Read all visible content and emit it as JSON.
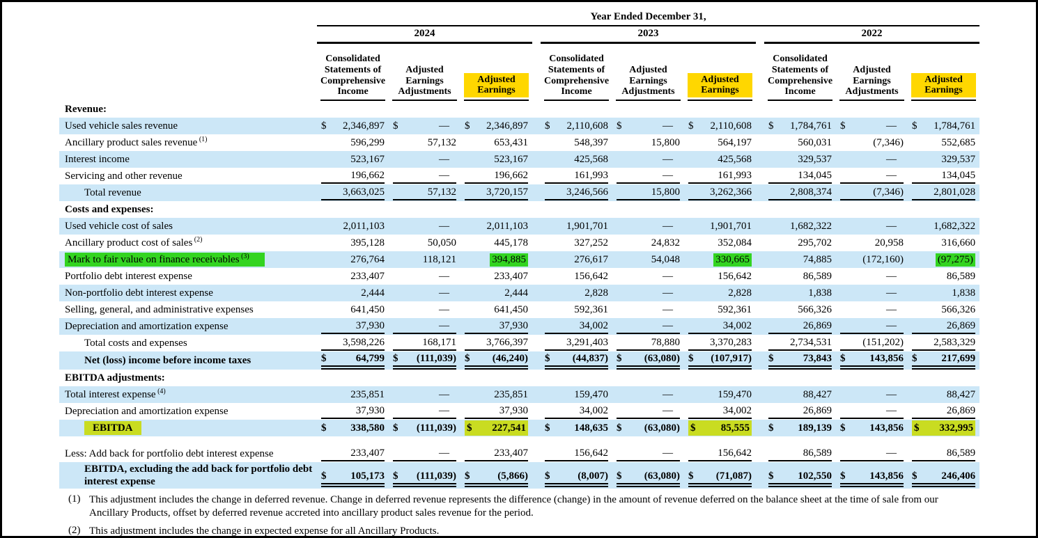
{
  "colors": {
    "stripe_blue": "#cce7f7",
    "highlight_gold": "#ffd700",
    "highlight_green": "#33d421",
    "highlight_chartreuse": "#c9dc21"
  },
  "header": {
    "title": "Year Ended December 31,",
    "years": [
      "2024",
      "2023",
      "2022"
    ],
    "columns": [
      "Consolidated Statements of Comprehensive Income",
      "Adjusted Earnings Adjustments",
      "Adjusted Earnings"
    ]
  },
  "table": {
    "rows": [
      {
        "kind": "section",
        "label": "Revenue:",
        "bg": "white"
      },
      {
        "label": "Used vehicle sales revenue",
        "bg": "blue",
        "dollar": true,
        "values": [
          "2,346,897",
          "—",
          "2,346,897",
          "2,110,608",
          "—",
          "2,110,608",
          "1,784,761",
          "—",
          "1,784,761"
        ]
      },
      {
        "label": "Ancillary product sales revenue",
        "sup": "(1)",
        "bg": "white",
        "values": [
          "596,299",
          "57,132",
          "653,431",
          "548,397",
          "15,800",
          "564,197",
          "560,031",
          "(7,346)",
          "552,685"
        ]
      },
      {
        "label": "Interest income",
        "bg": "blue",
        "values": [
          "523,167",
          "—",
          "523,167",
          "425,568",
          "—",
          "425,568",
          "329,537",
          "—",
          "329,537"
        ]
      },
      {
        "label": "Servicing and other revenue",
        "bg": "white",
        "border": "single",
        "values": [
          "196,662",
          "—",
          "196,662",
          "161,993",
          "—",
          "161,993",
          "134,045",
          "—",
          "134,045"
        ]
      },
      {
        "label": "Total revenue",
        "indent": true,
        "bg": "blue",
        "border": "single",
        "values": [
          "3,663,025",
          "57,132",
          "3,720,157",
          "3,246,566",
          "15,800",
          "3,262,366",
          "2,808,374",
          "(7,346)",
          "2,801,028"
        ]
      },
      {
        "kind": "section",
        "label": "Costs and expenses:",
        "bg": "white"
      },
      {
        "label": "Used vehicle cost of sales",
        "bg": "blue",
        "values": [
          "2,011,103",
          "—",
          "2,011,103",
          "1,901,701",
          "—",
          "1,901,701",
          "1,682,322",
          "—",
          "1,682,322"
        ]
      },
      {
        "label": "Ancillary product cost of sales",
        "sup": "(2)",
        "bg": "white",
        "values": [
          "395,128",
          "50,050",
          "445,178",
          "327,252",
          "24,832",
          "352,084",
          "295,702",
          "20,958",
          "316,660"
        ]
      },
      {
        "label": "Mark to fair value on finance receivables",
        "sup": "(3)",
        "bg": "blue",
        "labelHl": "green",
        "hl": {
          "2": "green",
          "5": "green",
          "8": "green"
        },
        "values": [
          "276,764",
          "118,121",
          "394,885",
          "276,617",
          "54,048",
          "330,665",
          "74,885",
          "(172,160)",
          "(97,275)"
        ]
      },
      {
        "label": "Portfolio debt interest expense",
        "bg": "white",
        "values": [
          "233,407",
          "—",
          "233,407",
          "156,642",
          "—",
          "156,642",
          "86,589",
          "—",
          "86,589"
        ]
      },
      {
        "label": "Non-portfolio debt interest expense",
        "bg": "blue",
        "values": [
          "2,444",
          "—",
          "2,444",
          "2,828",
          "—",
          "2,828",
          "1,838",
          "—",
          "1,838"
        ]
      },
      {
        "label": "Selling, general, and administrative expenses",
        "bg": "white",
        "values": [
          "641,450",
          "—",
          "641,450",
          "592,361",
          "—",
          "592,361",
          "566,326",
          "—",
          "566,326"
        ]
      },
      {
        "label": "Depreciation and amortization expense",
        "bg": "blue",
        "border": "single",
        "values": [
          "37,930",
          "—",
          "37,930",
          "34,002",
          "—",
          "34,002",
          "26,869",
          "—",
          "26,869"
        ]
      },
      {
        "label": "Total costs and expenses",
        "indent": true,
        "bg": "white",
        "border": "single",
        "values": [
          "3,598,226",
          "168,171",
          "3,766,397",
          "3,291,403",
          "78,880",
          "3,370,283",
          "2,734,531",
          "(151,202)",
          "2,583,329"
        ]
      },
      {
        "label": "Net (loss) income before income taxes",
        "indent": true,
        "bold": true,
        "bg": "blue",
        "dollar": true,
        "border": "double",
        "values": [
          "64,799",
          "(111,039)",
          "(46,240)",
          "(44,837)",
          "(63,080)",
          "(107,917)",
          "73,843",
          "143,856",
          "217,699"
        ]
      },
      {
        "kind": "section",
        "label": "EBITDA adjustments:",
        "bg": "white"
      },
      {
        "label": "Total interest expense",
        "sup": "(4)",
        "bg": "blue",
        "values": [
          "235,851",
          "—",
          "235,851",
          "159,470",
          "—",
          "159,470",
          "88,427",
          "—",
          "88,427"
        ]
      },
      {
        "label": "Depreciation and amortization expense",
        "bg": "white",
        "border": "single",
        "values": [
          "37,930",
          "—",
          "37,930",
          "34,002",
          "—",
          "34,002",
          "26,869",
          "—",
          "26,869"
        ]
      },
      {
        "label": "EBITDA",
        "indent": true,
        "bold": true,
        "bg": "blue",
        "dollar": true,
        "labelHl": "chartreuse",
        "hl": {
          "2": "chartreuse",
          "5": "chartreuse",
          "8": "chartreuse"
        },
        "values": [
          "338,580",
          "(111,039)",
          "227,541",
          "148,635",
          "(63,080)",
          "85,555",
          "189,139",
          "143,856",
          "332,995"
        ]
      },
      {
        "kind": "spacer"
      },
      {
        "label": "Less: Add back for portfolio debt interest expense",
        "bg": "white",
        "border": "single",
        "values": [
          "233,407",
          "—",
          "233,407",
          "156,642",
          "—",
          "156,642",
          "86,589",
          "—",
          "86,589"
        ]
      },
      {
        "label": "EBITDA, excluding the add back for portfolio debt interest expense",
        "indent": true,
        "bold": true,
        "bg": "blue",
        "dollar": true,
        "border": "double",
        "tall": true,
        "values": [
          "105,173",
          "(111,039)",
          "(5,866)",
          "(8,007)",
          "(63,080)",
          "(71,087)",
          "102,550",
          "143,856",
          "246,406"
        ]
      }
    ]
  },
  "footnotes": [
    {
      "marker": "(1)",
      "text": "This adjustment includes the change in deferred revenue. Change in deferred revenue represents the difference (change) in the amount of revenue deferred on the balance sheet at the time of sale from our Ancillary Products, offset by deferred revenue accreted into ancillary product sales revenue for the period."
    },
    {
      "marker": "(2)",
      "text": "This adjustment includes the change in expected expense for all Ancillary Products."
    }
  ]
}
